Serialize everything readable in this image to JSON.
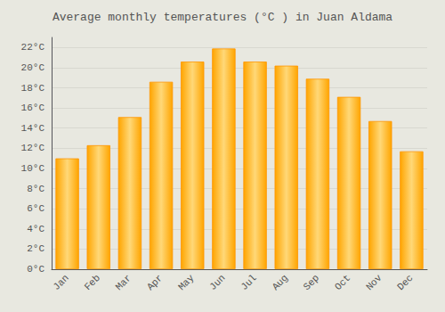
{
  "chart_data": {
    "type": "bar",
    "title": "Average monthly temperatures (°C ) in Juan Aldama",
    "categories": [
      "Jan",
      "Feb",
      "Mar",
      "Apr",
      "May",
      "Jun",
      "Jul",
      "Aug",
      "Sep",
      "Oct",
      "Nov",
      "Dec"
    ],
    "values": [
      11.0,
      12.3,
      15.1,
      18.6,
      20.6,
      21.9,
      20.6,
      20.2,
      18.9,
      17.1,
      14.7,
      11.7
    ],
    "color": "#FFA500",
    "ylim": [
      0,
      23
    ],
    "yticks": [
      {
        "value": 0,
        "label": "0°C"
      },
      {
        "value": 2,
        "label": "2°C"
      },
      {
        "value": 4,
        "label": "4°C"
      },
      {
        "value": 6,
        "label": "6°C"
      },
      {
        "value": 8,
        "label": "8°C"
      },
      {
        "value": 10,
        "label": "10°C"
      },
      {
        "value": 12,
        "label": "12°C"
      },
      {
        "value": 14,
        "label": "14°C"
      },
      {
        "value": 16,
        "label": "16°C"
      },
      {
        "value": 18,
        "label": "18°C"
      },
      {
        "value": 20,
        "label": "20°C"
      },
      {
        "value": 22,
        "label": "22°C"
      }
    ],
    "grid": true
  }
}
